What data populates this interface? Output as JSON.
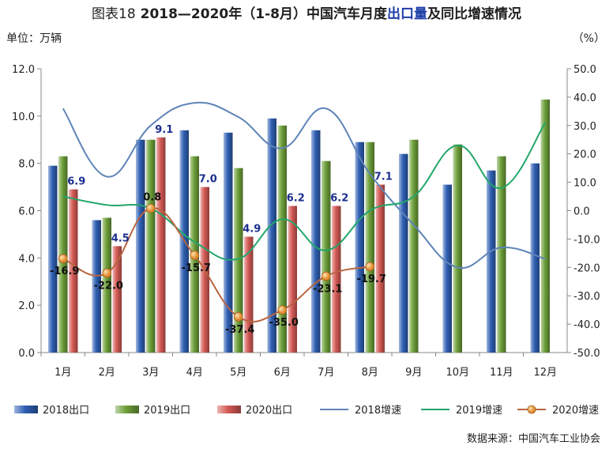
{
  "title": {
    "lead": "图表18",
    "main_before": "2018—2020年（1-8月）中国汽车月度",
    "highlight": "出口量",
    "main_after": "及同比增速情况"
  },
  "unit_left": "单位：万辆",
  "unit_right": "（%）",
  "source": "数据来源：中国汽车工业协会",
  "colors": {
    "bar_2018": "#2f5fb3",
    "bar_2019": "#6ea03a",
    "bar_2020": "#d45a55",
    "line_2018": "#5f84b8",
    "line_2019": "#22a66a",
    "line_2020": "#b86540",
    "marker_2020": "#e08a2e"
  },
  "chart_data": {
    "type": "bar",
    "categories": [
      "1月",
      "2月",
      "3月",
      "4月",
      "5月",
      "6月",
      "7月",
      "8月",
      "9月",
      "10月",
      "11月",
      "12月"
    ],
    "y_left": {
      "ylim": [
        0,
        12
      ],
      "ticks": [
        "0.0",
        "2.0",
        "4.0",
        "6.0",
        "8.0",
        "10.0",
        "12.0"
      ]
    },
    "y_right": {
      "ylim": [
        -50,
        50
      ],
      "ticks": [
        "-50.0",
        "-40.0",
        "-30.0",
        "-20.0",
        "-10.0",
        "0.0",
        "10.0",
        "20.0",
        "30.0",
        "40.0",
        "50.0"
      ]
    },
    "bar_series": [
      {
        "name": "2018出口",
        "values": [
          7.9,
          5.6,
          9.0,
          9.4,
          9.3,
          9.9,
          9.4,
          8.9,
          8.4,
          7.1,
          7.7,
          8.0
        ]
      },
      {
        "name": "2019出口",
        "values": [
          8.3,
          5.7,
          9.0,
          8.3,
          7.8,
          9.6,
          8.1,
          8.9,
          9.0,
          8.8,
          8.3,
          10.7
        ]
      },
      {
        "name": "2020出口",
        "values": [
          6.9,
          4.5,
          9.1,
          7.0,
          4.9,
          6.2,
          6.2,
          7.1
        ],
        "labels": [
          "6.9",
          "4.5",
          "9.1",
          "7.0",
          "4.9",
          "6.2",
          "6.2",
          "7.1"
        ]
      }
    ],
    "line_series": [
      {
        "name": "2018增速",
        "values": [
          36,
          12,
          30,
          38,
          33,
          22,
          36,
          13,
          -5,
          -20,
          -13,
          -17
        ]
      },
      {
        "name": "2019增速",
        "values": [
          5,
          2,
          0.8,
          -11,
          -17,
          -3,
          -14,
          0,
          5,
          23,
          8,
          31
        ]
      },
      {
        "name": "2020增速",
        "values": [
          -16.9,
          -22.0,
          0.8,
          -15.7,
          -37.4,
          -35.0,
          -23.1,
          -19.7
        ],
        "labels": [
          "-16.9",
          "-22.0",
          "0.8",
          "-15.7",
          "-37.4",
          "-35.0",
          "-23.1",
          "-19.7"
        ]
      }
    ],
    "legend": [
      "2018出口",
      "2019出口",
      "2020出口",
      "2018增速",
      "2019增速",
      "2020增速"
    ],
    "legend_position": "bottom",
    "grid": false
  }
}
